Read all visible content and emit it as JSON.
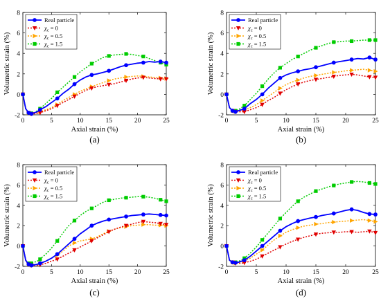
{
  "series_styles": [
    {
      "key": "real",
      "color": "#0000ff",
      "marker": "circle",
      "dash": ""
    },
    {
      "key": "x0",
      "color": "#e00000",
      "marker": "triangle-down",
      "dash": "2,2"
    },
    {
      "key": "x05",
      "color": "#ffa500",
      "marker": "triangle-right",
      "dash": "2,2"
    },
    {
      "key": "x15",
      "color": "#00cc00",
      "marker": "square",
      "dash": "2,2"
    }
  ],
  "legend": [
    {
      "label": "Real particle"
    },
    {
      "sym": "χ",
      "sub": "c",
      "rest": " = 0"
    },
    {
      "sym": "χ",
      "sub": "c",
      "rest": " = 0.5"
    },
    {
      "sym": "χ",
      "sub": "c",
      "rest": " = 1.5"
    }
  ],
  "chart_data": [
    {
      "type": "line",
      "panel_label": "(a)",
      "xlabel": "Axial strain (%)",
      "ylabel": "Volumetric strain (%)",
      "xlim": [
        0,
        25
      ],
      "ylim": [
        -2,
        8
      ],
      "xticks": [
        0,
        5,
        10,
        15,
        20,
        25
      ],
      "yticks": [
        -2,
        0,
        2,
        4,
        6,
        8
      ],
      "series": [
        {
          "name": "Real particle",
          "x": [
            0,
            0.5,
            1,
            1.5,
            2,
            2.5,
            3,
            4,
            5,
            6,
            7,
            8,
            9,
            10,
            11,
            12,
            13,
            14,
            15,
            16,
            17,
            18,
            19,
            20,
            21,
            22,
            23,
            24,
            25
          ],
          "y": [
            0,
            -1.4,
            -1.8,
            -1.9,
            -1.8,
            -1.7,
            -1.5,
            -1.2,
            -0.8,
            -0.4,
            0.1,
            0.5,
            1.0,
            1.4,
            1.7,
            1.9,
            2.0,
            2.15,
            2.3,
            2.5,
            2.7,
            2.85,
            2.95,
            3.05,
            3.1,
            3.2,
            3.15,
            3.2,
            3.1
          ]
        },
        {
          "name": "χc = 0",
          "x": [
            0,
            0.5,
            1,
            1.5,
            2,
            2.5,
            3,
            4,
            5,
            6,
            7,
            8,
            9,
            10,
            11,
            12,
            13,
            14,
            15,
            16,
            17,
            18,
            19,
            20,
            21,
            22,
            23,
            24,
            25
          ],
          "y": [
            0,
            -1.4,
            -1.8,
            -1.9,
            -1.9,
            -1.85,
            -1.8,
            -1.6,
            -1.4,
            -1.1,
            -0.8,
            -0.5,
            -0.2,
            0.1,
            0.4,
            0.6,
            0.75,
            0.85,
            0.95,
            1.05,
            1.2,
            1.35,
            1.5,
            1.6,
            1.65,
            1.6,
            1.55,
            1.5,
            1.5
          ]
        },
        {
          "name": "χc = 0.5",
          "x": [
            0,
            0.5,
            1,
            1.5,
            2,
            2.5,
            3,
            4,
            5,
            6,
            7,
            8,
            9,
            10,
            11,
            12,
            13,
            14,
            15,
            16,
            17,
            18,
            19,
            20,
            21,
            22,
            23,
            24,
            25
          ],
          "y": [
            0,
            -1.4,
            -1.8,
            -1.9,
            -1.85,
            -1.8,
            -1.7,
            -1.5,
            -1.3,
            -1.0,
            -0.6,
            -0.3,
            0.0,
            0.3,
            0.55,
            0.75,
            0.95,
            1.15,
            1.35,
            1.5,
            1.6,
            1.7,
            1.75,
            1.8,
            1.75,
            1.7,
            1.65,
            1.6,
            1.55
          ]
        },
        {
          "name": "χc = 1.5",
          "x": [
            0,
            0.5,
            1,
            1.5,
            2,
            2.5,
            3,
            4,
            5,
            6,
            7,
            8,
            9,
            10,
            11,
            12,
            13,
            14,
            15,
            16,
            17,
            18,
            19,
            20,
            21,
            22,
            23,
            24,
            25
          ],
          "y": [
            0,
            -1.4,
            -1.8,
            -1.85,
            -1.8,
            -1.6,
            -1.4,
            -0.9,
            -0.4,
            0.2,
            0.7,
            1.2,
            1.7,
            2.2,
            2.6,
            3.0,
            3.3,
            3.6,
            3.75,
            3.85,
            3.9,
            3.95,
            3.9,
            3.8,
            3.7,
            3.5,
            3.3,
            3.1,
            2.9
          ]
        }
      ]
    },
    {
      "type": "line",
      "panel_label": "(b)",
      "xlabel": "Axial strain (%)",
      "ylabel": "Volumetric strain (%)",
      "xlim": [
        0,
        25
      ],
      "ylim": [
        -2,
        8
      ],
      "xticks": [
        0,
        5,
        10,
        15,
        20,
        25
      ],
      "yticks": [
        -2,
        0,
        2,
        4,
        6,
        8
      ],
      "series": [
        {
          "name": "Real particle",
          "x": [
            0,
            0.5,
            1,
            1.5,
            2,
            2.5,
            3,
            4,
            5,
            6,
            7,
            8,
            9,
            10,
            11,
            12,
            13,
            14,
            15,
            16,
            17,
            18,
            19,
            20,
            21,
            22,
            23,
            24,
            25
          ],
          "y": [
            0,
            -1.3,
            -1.6,
            -1.7,
            -1.6,
            -1.5,
            -1.4,
            -0.9,
            -0.5,
            0.0,
            0.6,
            1.1,
            1.6,
            1.9,
            2.1,
            2.25,
            2.4,
            2.5,
            2.65,
            2.8,
            2.95,
            3.1,
            3.2,
            3.3,
            3.4,
            3.5,
            3.45,
            3.6,
            3.4
          ]
        },
        {
          "name": "χc = 0",
          "x": [
            0,
            0.5,
            1,
            1.5,
            2,
            2.5,
            3,
            4,
            5,
            6,
            7,
            8,
            9,
            10,
            11,
            12,
            13,
            14,
            15,
            16,
            17,
            18,
            19,
            20,
            21,
            22,
            23,
            24,
            25
          ],
          "y": [
            0,
            -1.3,
            -1.6,
            -1.7,
            -1.7,
            -1.7,
            -1.7,
            -1.5,
            -1.3,
            -1.0,
            -0.6,
            -0.3,
            0.1,
            0.45,
            0.75,
            1.0,
            1.2,
            1.35,
            1.45,
            1.55,
            1.65,
            1.75,
            1.85,
            1.9,
            1.95,
            1.9,
            1.8,
            1.7,
            1.65
          ]
        },
        {
          "name": "χc = 0.5",
          "x": [
            0,
            0.5,
            1,
            1.5,
            2,
            2.5,
            3,
            4,
            5,
            6,
            7,
            8,
            9,
            10,
            11,
            12,
            13,
            14,
            15,
            16,
            17,
            18,
            19,
            20,
            21,
            22,
            23,
            24,
            25
          ],
          "y": [
            0,
            -1.3,
            -1.6,
            -1.7,
            -1.65,
            -1.6,
            -1.5,
            -1.3,
            -1.0,
            -0.6,
            -0.2,
            0.2,
            0.6,
            0.95,
            1.2,
            1.4,
            1.6,
            1.75,
            1.85,
            1.95,
            2.05,
            2.15,
            2.2,
            2.3,
            2.35,
            2.4,
            2.45,
            2.35,
            2.25
          ]
        },
        {
          "name": "χc = 1.5",
          "x": [
            0,
            0.5,
            1,
            1.5,
            2,
            2.5,
            3,
            4,
            5,
            6,
            7,
            8,
            9,
            10,
            11,
            12,
            13,
            14,
            15,
            16,
            17,
            18,
            19,
            20,
            21,
            22,
            23,
            24,
            25
          ],
          "y": [
            0,
            -1.3,
            -1.6,
            -1.6,
            -1.5,
            -1.3,
            -1.1,
            -0.5,
            0.1,
            0.8,
            1.5,
            2.1,
            2.6,
            3.0,
            3.4,
            3.7,
            4.0,
            4.3,
            4.55,
            4.75,
            4.95,
            5.1,
            5.15,
            5.2,
            5.2,
            5.25,
            5.3,
            5.3,
            5.3
          ]
        }
      ]
    },
    {
      "type": "line",
      "panel_label": "(c)",
      "xlabel": "Axial strain (%)",
      "ylabel": "Volumetric strain (%)",
      "xlim": [
        0,
        25
      ],
      "ylim": [
        -2,
        8
      ],
      "xticks": [
        0,
        5,
        10,
        15,
        20,
        25
      ],
      "yticks": [
        -2,
        0,
        2,
        4,
        6,
        8
      ],
      "series": [
        {
          "name": "Real particle",
          "x": [
            0,
            0.5,
            1,
            1.5,
            2,
            2.5,
            3,
            4,
            5,
            6,
            7,
            8,
            9,
            10,
            11,
            12,
            13,
            14,
            15,
            16,
            17,
            18,
            19,
            20,
            21,
            22,
            23,
            24,
            25
          ],
          "y": [
            0,
            -1.4,
            -1.8,
            -1.9,
            -1.85,
            -1.8,
            -1.7,
            -1.5,
            -1.2,
            -0.8,
            -0.3,
            0.2,
            0.7,
            1.2,
            1.6,
            2.0,
            2.25,
            2.45,
            2.6,
            2.7,
            2.8,
            2.9,
            3.0,
            3.05,
            3.1,
            3.15,
            3.1,
            3.05,
            3.0
          ]
        },
        {
          "name": "χc = 0",
          "x": [
            0,
            0.5,
            1,
            1.5,
            2,
            2.5,
            3,
            4,
            5,
            6,
            7,
            8,
            9,
            10,
            11,
            12,
            13,
            14,
            15,
            16,
            17,
            18,
            19,
            20,
            21,
            22,
            23,
            24,
            25
          ],
          "y": [
            0,
            -1.4,
            -1.8,
            -1.9,
            -1.9,
            -1.9,
            -1.85,
            -1.7,
            -1.5,
            -1.3,
            -1.0,
            -0.7,
            -0.4,
            -0.1,
            0.2,
            0.5,
            0.8,
            1.1,
            1.4,
            1.65,
            1.85,
            2.0,
            2.15,
            2.3,
            2.4,
            2.35,
            2.3,
            2.2,
            2.1
          ]
        },
        {
          "name": "χc = 0.5",
          "x": [
            0,
            0.5,
            1,
            1.5,
            2,
            2.5,
            3,
            4,
            5,
            6,
            7,
            8,
            9,
            10,
            11,
            12,
            13,
            14,
            15,
            16,
            17,
            18,
            19,
            20,
            21,
            22,
            23,
            24,
            25
          ],
          "y": [
            0,
            -1.4,
            -1.8,
            -1.9,
            -1.85,
            -1.8,
            -1.7,
            -1.5,
            -1.2,
            -0.9,
            -0.5,
            0.0,
            0.3,
            0.5,
            0.6,
            0.7,
            0.9,
            1.2,
            1.45,
            1.65,
            1.8,
            1.9,
            2.0,
            2.05,
            2.1,
            2.1,
            2.05,
            2.05,
            2.0
          ]
        },
        {
          "name": "χc = 1.5",
          "x": [
            0,
            0.5,
            1,
            1.5,
            2,
            2.5,
            3,
            4,
            5,
            6,
            7,
            8,
            9,
            10,
            11,
            12,
            13,
            14,
            15,
            16,
            17,
            18,
            19,
            20,
            21,
            22,
            23,
            24,
            25
          ],
          "y": [
            0,
            -1.4,
            -1.7,
            -1.7,
            -1.6,
            -1.5,
            -1.3,
            -0.8,
            -0.2,
            0.5,
            1.3,
            2.0,
            2.5,
            3.0,
            3.4,
            3.7,
            4.0,
            4.3,
            4.5,
            4.6,
            4.7,
            4.75,
            4.8,
            4.85,
            4.85,
            4.8,
            4.7,
            4.55,
            4.4
          ]
        }
      ]
    },
    {
      "type": "line",
      "panel_label": "(d)",
      "xlabel": "Axial strain (%)",
      "ylabel": "Volumetric strain (%)",
      "xlim": [
        0,
        25
      ],
      "ylim": [
        -2,
        8
      ],
      "xticks": [
        0,
        5,
        10,
        15,
        20,
        25
      ],
      "yticks": [
        -2,
        0,
        2,
        4,
        6,
        8
      ],
      "series": [
        {
          "name": "Real particle",
          "x": [
            0,
            0.5,
            1,
            1.5,
            2,
            2.5,
            3,
            4,
            5,
            6,
            7,
            8,
            9,
            10,
            11,
            12,
            13,
            14,
            15,
            16,
            17,
            18,
            19,
            20,
            21,
            22,
            23,
            24,
            25
          ],
          "y": [
            0,
            -1.4,
            -1.6,
            -1.65,
            -1.6,
            -1.5,
            -1.4,
            -1.0,
            -0.5,
            0.0,
            0.5,
            1.0,
            1.5,
            1.9,
            2.2,
            2.45,
            2.6,
            2.75,
            2.85,
            3.0,
            3.1,
            3.2,
            3.35,
            3.5,
            3.6,
            3.5,
            3.3,
            3.15,
            3.1
          ]
        },
        {
          "name": "χc = 0",
          "x": [
            0,
            0.5,
            1,
            1.5,
            2,
            2.5,
            3,
            4,
            5,
            6,
            7,
            8,
            9,
            10,
            11,
            12,
            13,
            14,
            15,
            16,
            17,
            18,
            19,
            20,
            21,
            22,
            23,
            24,
            25
          ],
          "y": [
            0,
            -1.4,
            -1.6,
            -1.7,
            -1.7,
            -1.7,
            -1.65,
            -1.5,
            -1.3,
            -1.0,
            -0.7,
            -0.4,
            -0.1,
            0.2,
            0.45,
            0.65,
            0.85,
            1.0,
            1.15,
            1.25,
            1.3,
            1.35,
            1.35,
            1.4,
            1.4,
            1.35,
            1.4,
            1.45,
            1.3
          ]
        },
        {
          "name": "χc = 0.5",
          "x": [
            0,
            0.5,
            1,
            1.5,
            2,
            2.5,
            3,
            4,
            5,
            6,
            7,
            8,
            9,
            10,
            11,
            12,
            13,
            14,
            15,
            16,
            17,
            18,
            19,
            20,
            21,
            22,
            23,
            24,
            25
          ],
          "y": [
            0,
            -1.4,
            -1.6,
            -1.7,
            -1.65,
            -1.6,
            -1.5,
            -1.2,
            -0.8,
            -0.4,
            0.1,
            0.6,
            1.0,
            1.35,
            1.6,
            1.8,
            1.95,
            2.05,
            2.15,
            2.2,
            2.3,
            2.35,
            2.4,
            2.45,
            2.5,
            2.55,
            2.6,
            2.5,
            2.4
          ]
        },
        {
          "name": "χc = 1.5",
          "x": [
            0,
            0.5,
            1,
            1.5,
            2,
            2.5,
            3,
            4,
            5,
            6,
            7,
            8,
            9,
            10,
            11,
            12,
            13,
            14,
            15,
            16,
            17,
            18,
            19,
            20,
            21,
            22,
            23,
            24,
            25
          ],
          "y": [
            0,
            -1.4,
            -1.6,
            -1.6,
            -1.5,
            -1.4,
            -1.2,
            -0.7,
            -0.1,
            0.6,
            1.3,
            2.0,
            2.7,
            3.3,
            3.9,
            4.4,
            4.8,
            5.1,
            5.4,
            5.6,
            5.8,
            5.95,
            6.1,
            6.2,
            6.3,
            6.35,
            6.3,
            6.2,
            6.1
          ]
        }
      ]
    }
  ]
}
